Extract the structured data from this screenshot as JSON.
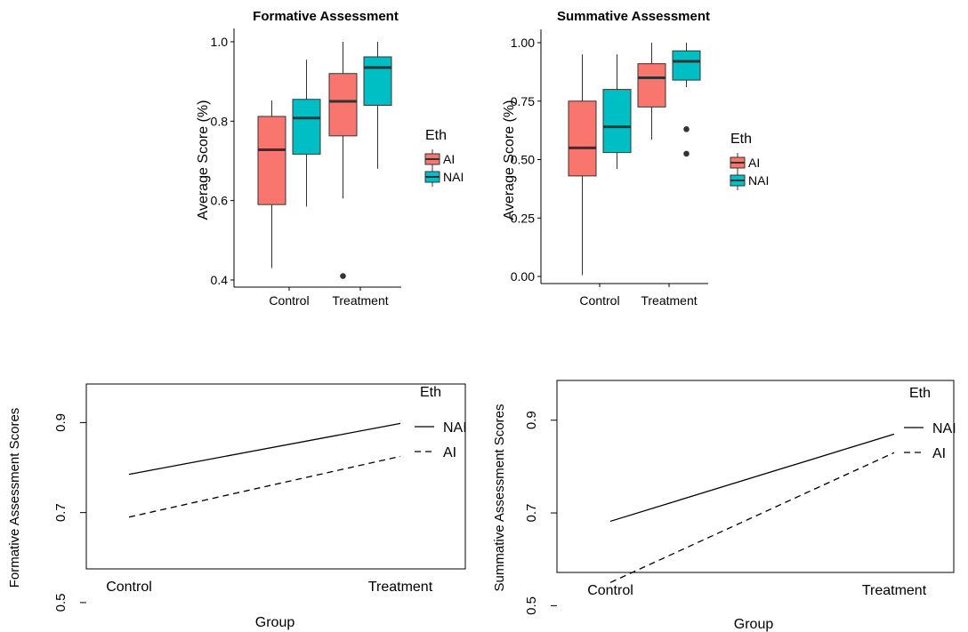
{
  "chart_data": [
    {
      "type": "box",
      "title": "Formative Assessment",
      "ylabel": "Average Score (%)",
      "xlabel": "",
      "categories": [
        "Control",
        "Treatment"
      ],
      "ylim": [
        0.4,
        1.0
      ],
      "yticks": [
        "0.4",
        "0.6",
        "0.8",
        "1.0"
      ],
      "legend": {
        "title": "Eth",
        "placement": "right",
        "entries": [
          "AI",
          "NAI"
        ]
      },
      "series": [
        {
          "name": "AI",
          "color": "#F8766D",
          "boxes": [
            {
              "min": 0.43,
              "q1": 0.59,
              "median": 0.728,
              "q3": 0.812,
              "max": 0.852,
              "outliers": []
            },
            {
              "min": 0.605,
              "q1": 0.763,
              "median": 0.85,
              "q3": 0.92,
              "max": 1.0,
              "outliers": [
                0.41
              ]
            }
          ]
        },
        {
          "name": "NAI",
          "color": "#00BFC4",
          "boxes": [
            {
              "min": 0.585,
              "q1": 0.717,
              "median": 0.808,
              "q3": 0.855,
              "max": 0.955,
              "outliers": []
            },
            {
              "min": 0.68,
              "q1": 0.84,
              "median": 0.935,
              "q3": 0.962,
              "max": 1.0,
              "outliers": []
            }
          ]
        }
      ]
    },
    {
      "type": "box",
      "title": "Summative Assessment",
      "ylabel": "Average Score (%)",
      "xlabel": "",
      "categories": [
        "Control",
        "Treatment"
      ],
      "ylim": [
        0.0,
        1.0
      ],
      "yticks": [
        "0.00",
        "0.25",
        "0.50",
        "0.75",
        "1.00"
      ],
      "legend": {
        "title": "Eth",
        "placement": "right",
        "entries": [
          "AI",
          "NAI"
        ]
      },
      "series": [
        {
          "name": "AI",
          "color": "#F8766D",
          "boxes": [
            {
              "min": 0.005,
              "q1": 0.43,
              "median": 0.55,
              "q3": 0.75,
              "max": 0.95,
              "outliers": []
            },
            {
              "min": 0.585,
              "q1": 0.725,
              "median": 0.85,
              "q3": 0.91,
              "max": 1.0,
              "outliers": []
            }
          ]
        },
        {
          "name": "NAI",
          "color": "#00BFC4",
          "boxes": [
            {
              "min": 0.46,
              "q1": 0.53,
              "median": 0.64,
              "q3": 0.8,
              "max": 0.95,
              "outliers": []
            },
            {
              "min": 0.81,
              "q1": 0.84,
              "median": 0.92,
              "q3": 0.965,
              "max": 1.0,
              "outliers": [
                0.63,
                0.525
              ]
            }
          ]
        }
      ]
    },
    {
      "type": "line",
      "title": "",
      "ylabel": "Formative Assessment Scores",
      "xlabel": "Group",
      "categories": [
        "Control",
        "Treatment"
      ],
      "ylim": [
        0.5,
        0.9
      ],
      "yticks": [
        "0.5",
        "0.7",
        "0.9"
      ],
      "legend": {
        "title": "Eth",
        "placement": "top-right",
        "entries": [
          "NAI",
          "AI"
        ]
      },
      "series": [
        {
          "name": "NAI",
          "style": "solid",
          "values": [
            0.785,
            0.898
          ]
        },
        {
          "name": "AI",
          "style": "dashed",
          "values": [
            0.69,
            0.825
          ]
        }
      ]
    },
    {
      "type": "line",
      "title": "",
      "ylabel": "Summative Assessment Scores",
      "xlabel": "Group",
      "categories": [
        "Control",
        "Treatment"
      ],
      "ylim": [
        0.5,
        0.9
      ],
      "yticks": [
        "0.5",
        "0.7",
        "0.9"
      ],
      "legend": {
        "title": "Eth",
        "placement": "top-right",
        "entries": [
          "NAI",
          "AI"
        ]
      },
      "series": [
        {
          "name": "NAI",
          "style": "solid",
          "values": [
            0.682,
            0.87
          ]
        },
        {
          "name": "AI",
          "style": "dashed",
          "values": [
            0.55,
            0.83
          ]
        }
      ]
    }
  ]
}
